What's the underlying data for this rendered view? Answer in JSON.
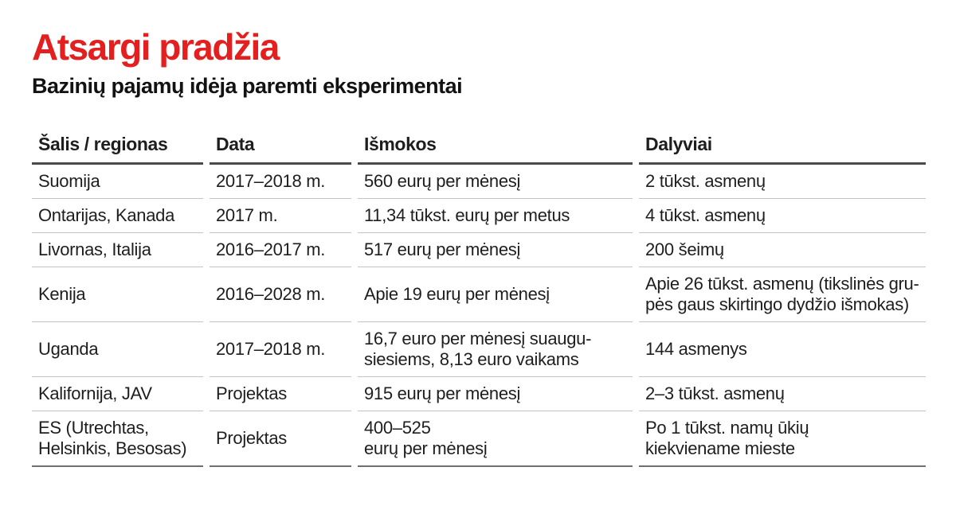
{
  "chart_data": {
    "type": "table",
    "title": "Atsargi pradžia",
    "subtitle": "Bazinių pajamų idėja paremti eksperimentai",
    "columns": [
      "Šalis / regionas",
      "Data",
      "Išmokos",
      "Dalyviai"
    ],
    "rows": [
      {
        "region": "Suomija",
        "period": "2017–2018 m.",
        "payout": "560 eurų per mėnesį",
        "participants": "2 tūkst. asmenų"
      },
      {
        "region": "Ontarijas, Kanada",
        "period": "2017 m.",
        "payout": "11,34 tūkst. eurų per metus",
        "participants": "4 tūkst. asmenų"
      },
      {
        "region": "Livornas, Italija",
        "period": "2016–2017 m.",
        "payout": "517 eurų per mėnesį",
        "participants": "200 šeimų"
      },
      {
        "region": "Kenija",
        "period": "2016–2028 m.",
        "payout": "Apie 19 eurų per mėnesį",
        "participants": "Apie 26 tūkst. asmenų (tikslinės gru-\npės gaus skirtingo dydžio išmokas)"
      },
      {
        "region": "Uganda",
        "period": "2017–2018 m.",
        "payout": "16,7 euro per mėnesį suaugu-\nsiesiems, 8,13 euro vaikams",
        "participants": "144 asmenys"
      },
      {
        "region": "Kalifornija, JAV",
        "period": "Projektas",
        "payout": "915 eurų per mėnesį",
        "participants": "2–3 tūkst. asmenų"
      },
      {
        "region": "ES (Utrechtas,\nHelsinkis, Besosas)",
        "period": "Projektas",
        "payout": "400–525\neurų per mėnesį",
        "participants": "Po 1 tūkst. namų ūkių\nkiekviename mieste"
      }
    ],
    "layout": {
      "legend": "none",
      "grid": "horizontal-rules-only"
    }
  },
  "colors": {
    "title_red": "#e3201f",
    "text": "#1e1e1e",
    "header_rule": "#4a4a4a",
    "row_rule": "#c3c3c3",
    "bottom_rule": "#6f6f6f"
  }
}
